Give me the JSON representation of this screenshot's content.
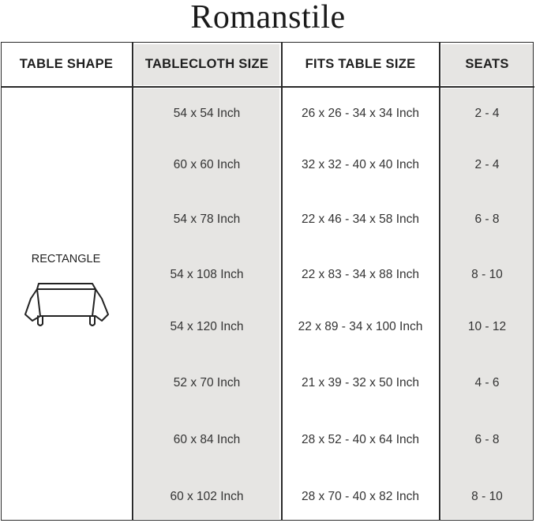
{
  "brand": {
    "logo_text": "Romanstile"
  },
  "table": {
    "headers": [
      "TABLE SHAPE",
      "TABLECLOTH SIZE",
      "FITS TABLE SIZE",
      "SEATS"
    ],
    "shape": {
      "label": "RECTANGLE",
      "icon": "rectangle-table-icon"
    },
    "rows": [
      {
        "size": "54 x 54 Inch",
        "fits": "26 x 26 - 34 x 34 Inch",
        "seats": "2 - 4"
      },
      {
        "size": "60 x 60 Inch",
        "fits": "32 x 32 - 40 x 40 Inch",
        "seats": "2 - 4"
      },
      {
        "size": "54 x 78 Inch",
        "fits": "22 x 46 - 34 x 58 Inch",
        "seats": "6 - 8"
      },
      {
        "size": "54 x 108 Inch",
        "fits": "22 x 83 - 34 x 88 Inch",
        "seats": "8 - 10"
      },
      {
        "size": "54 x 120 Inch",
        "fits": "22 x 89 - 34 x 100 Inch",
        "seats": "10 - 12"
      },
      {
        "size": "52 x 70 Inch",
        "fits": "21 x 39 - 32 x 50 Inch",
        "seats": "4 - 6"
      },
      {
        "size": "60 x 84 Inch",
        "fits": "28 x 52 - 40 x 64 Inch",
        "seats": "6 - 8"
      },
      {
        "size": "60 x 102 Inch",
        "fits": "28 x 70 - 40 x 82 Inch",
        "seats": "8 - 10"
      }
    ]
  },
  "colors": {
    "shaded_column": "#e6e5e3",
    "border": "#2a2a2a"
  }
}
